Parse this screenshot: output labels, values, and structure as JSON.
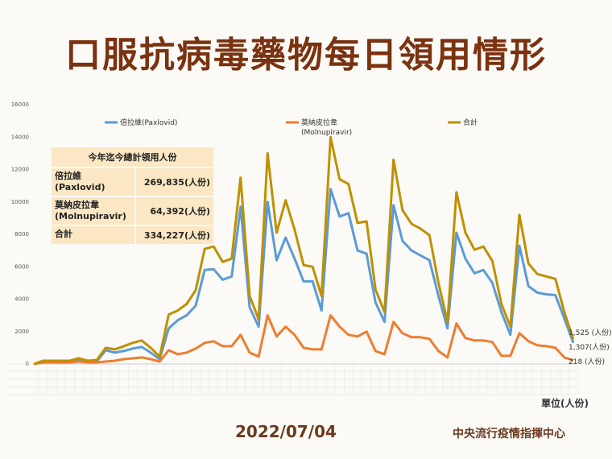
{
  "title": "口服抗病毒藥物每日領用情形",
  "date": "2022/07/04",
  "organization": "中央流行疫情指揮中心",
  "unit_label": "單位(人份)",
  "summary": {
    "header": "今年迄今總計領用人份",
    "rows": [
      {
        "name_line1": "倍拉維",
        "name_line2": "(Paxlovid)",
        "value": "269,835(人份)"
      },
      {
        "name_line1": "莫納皮拉韋",
        "name_line2": "(Molnupiravir)",
        "value": "64,392(人份)"
      },
      {
        "name_line1": "合計",
        "name_line2": "",
        "value": "334,227(人份)"
      }
    ]
  },
  "end_labels": {
    "total": "1,525 (人份)",
    "paxlovid": "1,307(人份)",
    "molnupiravir": "218 (人份)"
  },
  "colors": {
    "paxlovid": "#5b9bd5",
    "molnupiravir": "#ed7d31",
    "total": "#bf9000"
  },
  "chart_data": {
    "type": "line",
    "title": "",
    "xlabel": "",
    "ylabel": "",
    "ylim": [
      0,
      16000
    ],
    "yticks": [
      "0",
      "2000",
      "4000",
      "6000",
      "8000",
      "10000",
      "12000",
      "14000",
      "16000"
    ],
    "legend_placement": "top",
    "series": [
      {
        "name": "倍拉維(Paxlovid)",
        "color": "#5b9bd5",
        "values": [
          0,
          100,
          100,
          100,
          100,
          200,
          100,
          150,
          850,
          700,
          800,
          950,
          1050,
          700,
          300,
          2200,
          2700,
          3000,
          3600,
          5800,
          5850,
          5200,
          5400,
          9700,
          3500,
          2300,
          10000,
          6400,
          7800,
          6500,
          5100,
          5100,
          3300,
          10800,
          9100,
          9300,
          7000,
          6800,
          3800,
          2600,
          9800,
          7600,
          7000,
          6700,
          6400,
          4200,
          2200,
          8100,
          6500,
          5600,
          5800,
          5000,
          3200,
          1800,
          7300,
          4800,
          4400,
          4300,
          4250,
          2800,
          1307
        ]
      },
      {
        "name": "莫納皮拉韋\n(Molnupiravir)",
        "color": "#ed7d31",
        "values": [
          0,
          100,
          100,
          100,
          100,
          150,
          100,
          100,
          150,
          200,
          300,
          350,
          400,
          300,
          150,
          850,
          600,
          700,
          950,
          1300,
          1400,
          1100,
          1100,
          1800,
          700,
          450,
          3000,
          1700,
          2300,
          1800,
          1000,
          900,
          900,
          3000,
          2300,
          1800,
          1700,
          2000,
          800,
          600,
          2600,
          1900,
          1650,
          1650,
          1550,
          800,
          400,
          2500,
          1600,
          1450,
          1450,
          1350,
          500,
          500,
          1900,
          1400,
          1150,
          1100,
          1000,
          400,
          218
        ]
      },
      {
        "name": "合計",
        "color": "#bf9000",
        "values": [
          0,
          200,
          200,
          200,
          200,
          350,
          200,
          250,
          1000,
          900,
          1100,
          1300,
          1450,
          1000,
          450,
          3050,
          3300,
          3700,
          4550,
          7100,
          7250,
          6300,
          6500,
          11500,
          4200,
          2750,
          13000,
          8100,
          10100,
          8300,
          6100,
          6000,
          4200,
          14000,
          11400,
          11100,
          8700,
          8800,
          4600,
          3200,
          12600,
          9500,
          8650,
          8350,
          7950,
          5000,
          2600,
          10600,
          8100,
          7050,
          7250,
          6350,
          3700,
          2300,
          9200,
          6200,
          5550,
          5400,
          5250,
          3200,
          1525
        ]
      }
    ]
  }
}
